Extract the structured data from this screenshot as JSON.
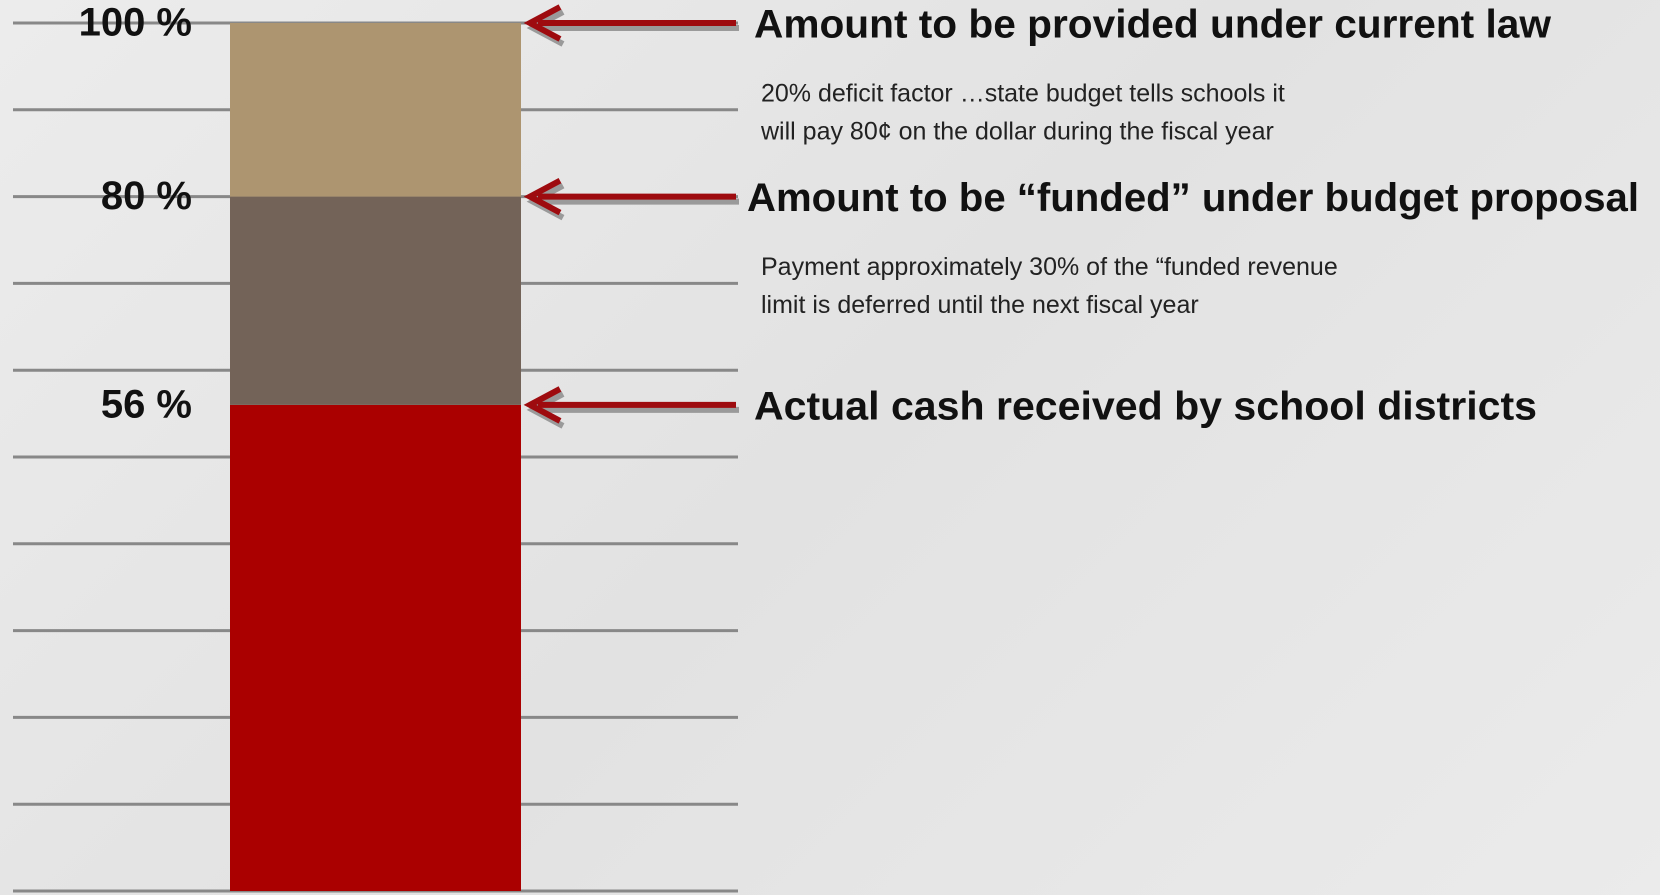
{
  "chart_data": {
    "type": "stacked-bar",
    "segments": [
      {
        "value": 56,
        "color": "#aa0000"
      },
      {
        "value": 24,
        "color": "#736358"
      },
      {
        "value": 20,
        "color": "#ad9570"
      }
    ],
    "ylim": [
      0,
      100
    ],
    "yticks": [
      0,
      10,
      20,
      30,
      40,
      50,
      60,
      70,
      80,
      90,
      100
    ],
    "grid": true,
    "grid_color": "#888888",
    "level_labels": [
      {
        "value": 100,
        "label": "100 %"
      },
      {
        "value": 80,
        "label": "80 %"
      },
      {
        "value": 56,
        "label": "56 %"
      }
    ],
    "annotations": [
      {
        "value": 100,
        "title": "Amount to be provided under current law",
        "text": [
          "20% deficit factor …state budget tells schools it",
          "will pay 80¢ on the dollar during the fiscal year"
        ]
      },
      {
        "value": 80,
        "title": "Amount to be “funded” under budget proposal",
        "text": [
          "Payment approximately 30%  of the “funded revenue",
          "limit is deferred until the next fiscal year"
        ]
      },
      {
        "value": 56,
        "title": "Actual cash received by school districts",
        "text": []
      }
    ],
    "arrow_color": "#9e0b0f"
  }
}
